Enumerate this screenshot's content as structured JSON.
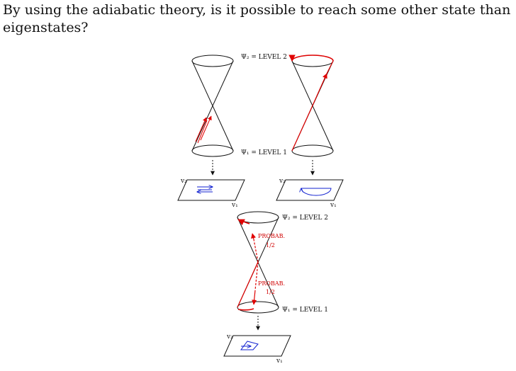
{
  "question": "By using the adiabatic theory, is it possible to reach some other state than eigenstates?",
  "figure": {
    "level2_label": "Ψ₂ = LEVEL 2",
    "level1_label": "Ψ₁ = LEVEL 1",
    "axis_v1": "v₁",
    "axis_v2": "v₂",
    "probab_upper": "PROBAB.",
    "probab_upper_value": "1/2",
    "probab_lower": "PROBAB.",
    "probab_lower_value": "1/2",
    "colors": {
      "path": "#e00000",
      "plane_arrow": "#1020d0",
      "ink": "#111111"
    }
  }
}
